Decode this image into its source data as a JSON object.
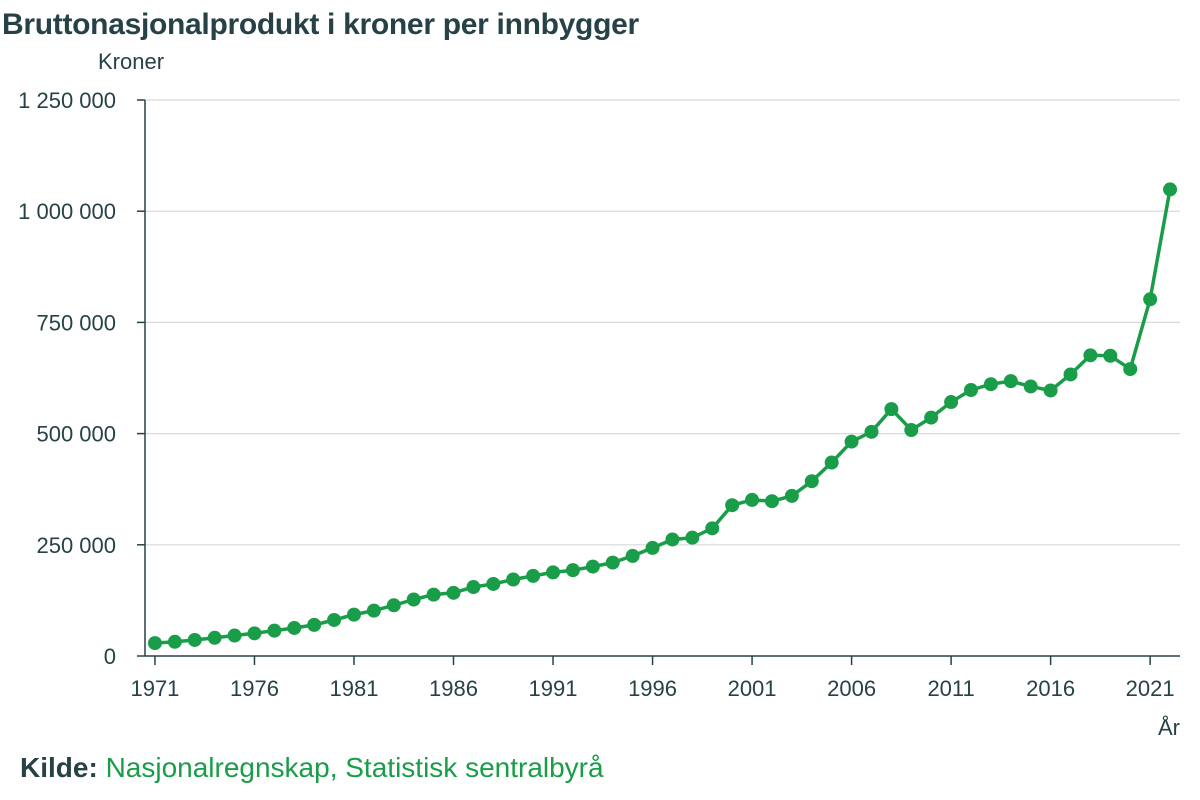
{
  "colors": {
    "series": "#1a9d49",
    "text": "#274247",
    "grid": "#d9d9d9",
    "axis": "#274247"
  },
  "chart_data": {
    "type": "line",
    "title": "Bruttonasjonalprodukt i kroner per innbygger",
    "ylabel": "Kroner",
    "xlabel": "År",
    "ylim": [
      0,
      1250000
    ],
    "xlim": [
      1970.5,
      2022.5
    ],
    "grid": true,
    "y_ticks": [
      {
        "value": 0,
        "label": "0"
      },
      {
        "value": 250000,
        "label": "250 000"
      },
      {
        "value": 500000,
        "label": "500 000"
      },
      {
        "value": 750000,
        "label": "750 000"
      },
      {
        "value": 1000000,
        "label": "1 000 000"
      },
      {
        "value": 1250000,
        "label": "1 250 000"
      }
    ],
    "x_ticks": [
      {
        "value": 1971,
        "label": "1971"
      },
      {
        "value": 1976,
        "label": "1976"
      },
      {
        "value": 1981,
        "label": "1981"
      },
      {
        "value": 1986,
        "label": "1986"
      },
      {
        "value": 1991,
        "label": "1991"
      },
      {
        "value": 1996,
        "label": "1996"
      },
      {
        "value": 2001,
        "label": "2001"
      },
      {
        "value": 2006,
        "label": "2006"
      },
      {
        "value": 2011,
        "label": "2011"
      },
      {
        "value": 2016,
        "label": "2016"
      },
      {
        "value": 2021,
        "label": "2021"
      }
    ],
    "series": [
      {
        "x": [
          1971,
          1972,
          1973,
          1974,
          1975,
          1976,
          1977,
          1978,
          1979,
          1980,
          1981,
          1982,
          1983,
          1984,
          1985,
          1986,
          1987,
          1988,
          1989,
          1990,
          1991,
          1992,
          1993,
          1994,
          1995,
          1996,
          1997,
          1998,
          1999,
          2000,
          2001,
          2002,
          2003,
          2004,
          2005,
          2006,
          2007,
          2008,
          2009,
          2010,
          2011,
          2012,
          2013,
          2014,
          2015,
          2016,
          2017,
          2018,
          2019,
          2020,
          2021,
          2022
        ],
        "values": [
          29000,
          32000,
          36000,
          41000,
          46000,
          51000,
          57000,
          63000,
          70000,
          81000,
          93000,
          102000,
          114000,
          127000,
          138000,
          142000,
          155000,
          162000,
          172000,
          180000,
          188000,
          193000,
          201000,
          210000,
          225000,
          243000,
          262000,
          266000,
          287000,
          339000,
          351000,
          348000,
          360000,
          393000,
          435000,
          482000,
          504000,
          555000,
          508000,
          536000,
          571000,
          598000,
          611000,
          618000,
          606000,
          597000,
          633000,
          676000,
          675000,
          645000,
          802000,
          1049000
        ]
      }
    ]
  },
  "source": {
    "label": "Kilde:",
    "text": "Nasjonalregnskap, Statistisk sentralbyrå"
  }
}
